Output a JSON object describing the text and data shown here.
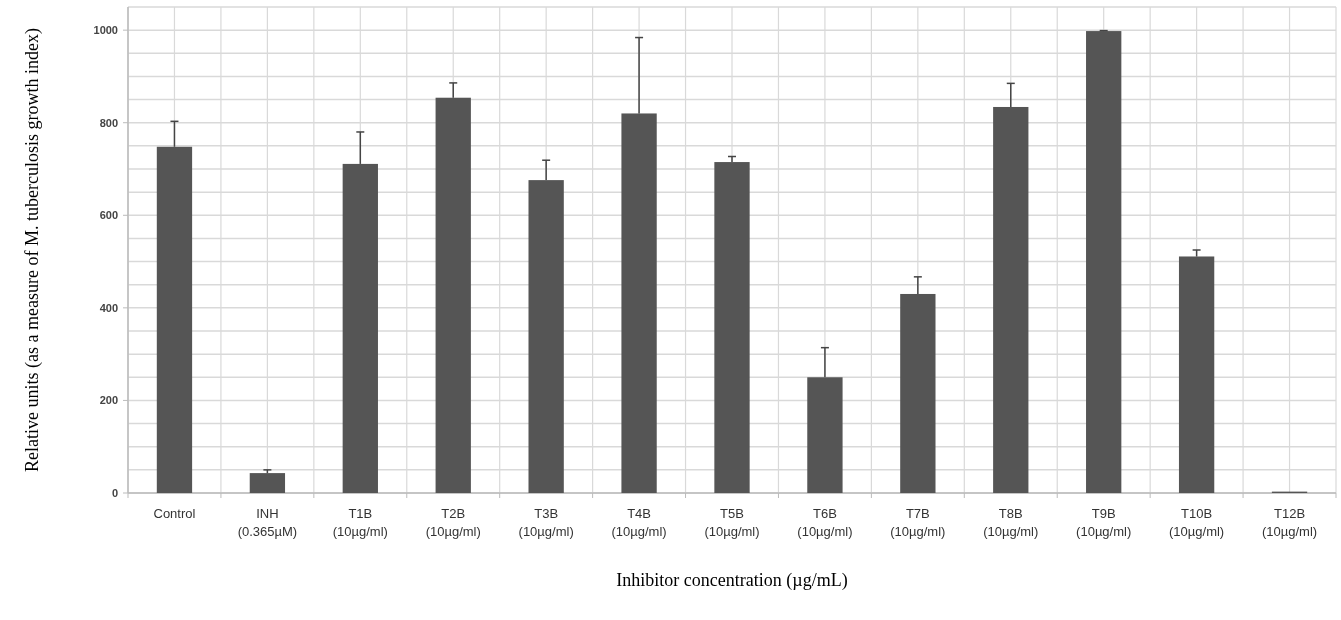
{
  "chart_data": {
    "type": "bar",
    "xlabel": "Inhibitor concentration (µg/mL)",
    "ylabel": "Relative units (as a measure of M. tuberculosis growth index)",
    "categories": [
      "Control",
      "INH\n(0.365µM)",
      "T1B\n(10µg/ml)",
      "T2B\n(10µg/ml)",
      "T3B\n(10µg/ml)",
      "T4B\n(10µg/ml)",
      "T5B\n(10µg/ml)",
      "T6B\n(10µg/ml)",
      "T7B\n(10µg/ml)",
      "T8B\n(10µg/ml)",
      "T9B\n(10µg/ml)",
      "T10B\n(10µg/ml)",
      "T12B\n(10µg/ml)"
    ],
    "values": [
      748,
      43,
      711,
      854,
      676,
      820,
      715,
      250,
      430,
      834,
      998,
      511,
      3
    ],
    "errors": [
      [
        748,
        803
      ],
      [
        43,
        50
      ],
      [
        711,
        780
      ],
      [
        854,
        886
      ],
      [
        676,
        719
      ],
      [
        820,
        984
      ],
      [
        715,
        727
      ],
      [
        250,
        314
      ],
      [
        430,
        467
      ],
      [
        834,
        885
      ],
      [
        998,
        999
      ],
      [
        511,
        525
      ],
      null
    ],
    "color": "#555555",
    "ylim": [
      0,
      1050
    ],
    "yticks": [
      0,
      {
        "value": 50,
        "label": null
      },
      {
        "value": 100,
        "label": null
      },
      {
        "value": 150,
        "label": null
      },
      200,
      {
        "value": 250,
        "label": null
      },
      {
        "value": 300,
        "label": null
      },
      {
        "value": 350,
        "label": null
      },
      400,
      {
        "value": 450,
        "label": null
      },
      {
        "value": 500,
        "label": null
      },
      {
        "value": 550,
        "label": null
      },
      600,
      {
        "value": 650,
        "label": null
      },
      {
        "value": 700,
        "label": null
      },
      {
        "value": 750,
        "label": null
      },
      800,
      {
        "value": 850,
        "label": null
      },
      {
        "value": 900,
        "label": null
      },
      {
        "value": 950,
        "label": null
      },
      1000,
      {
        "value": 1050,
        "label": null
      }
    ],
    "grid": true
  }
}
